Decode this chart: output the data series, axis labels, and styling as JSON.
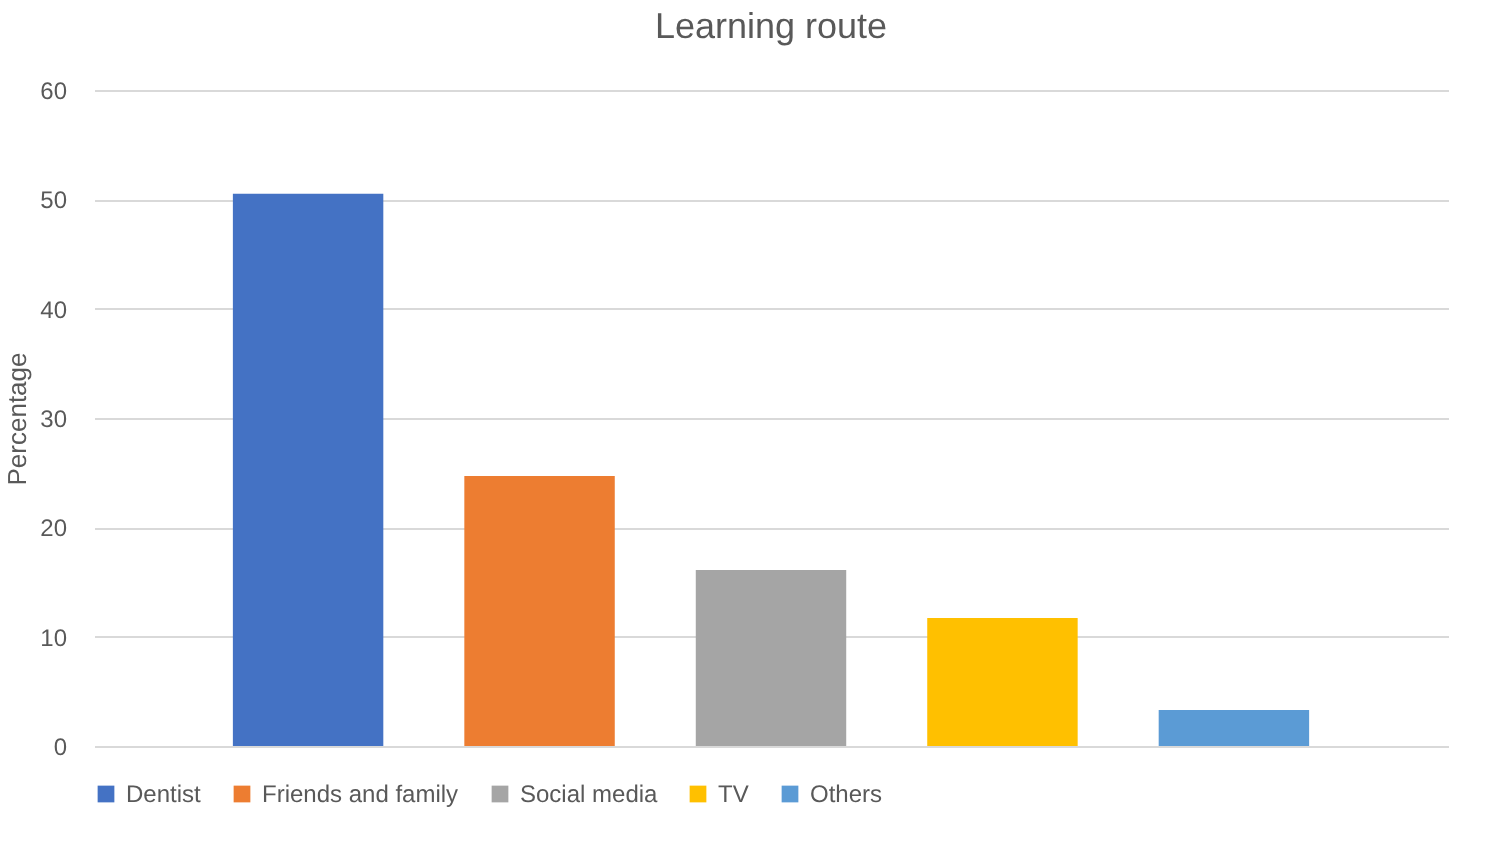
{
  "chart_data": {
    "type": "bar",
    "title": "Learning route",
    "ylabel": "Percentage",
    "categories": [
      null,
      null,
      null,
      null,
      null
    ],
    "series": [
      {
        "name": "Dentist",
        "color": "#4472c4",
        "values": [
          50.5,
          null,
          null,
          null,
          null
        ]
      },
      {
        "name": "Friends and family",
        "color": "#ed7d31",
        "values": [
          null,
          24.7,
          null,
          null,
          null
        ]
      },
      {
        "name": "Social media",
        "color": "#a5a5a5",
        "values": [
          null,
          null,
          16.1,
          null,
          null
        ]
      },
      {
        "name": "TV",
        "color": "#ffc000",
        "values": [
          null,
          null,
          null,
          11.7,
          null
        ]
      },
      {
        "name": "Others",
        "color": "#5b9bd5",
        "values": [
          null,
          null,
          null,
          null,
          3.3
        ]
      }
    ],
    "ylim": [
      0,
      60
    ],
    "yticks": [
      0,
      10,
      20,
      30,
      40,
      50,
      60
    ],
    "grid": "y",
    "legend": "bottom",
    "tick_labels": "y"
  }
}
